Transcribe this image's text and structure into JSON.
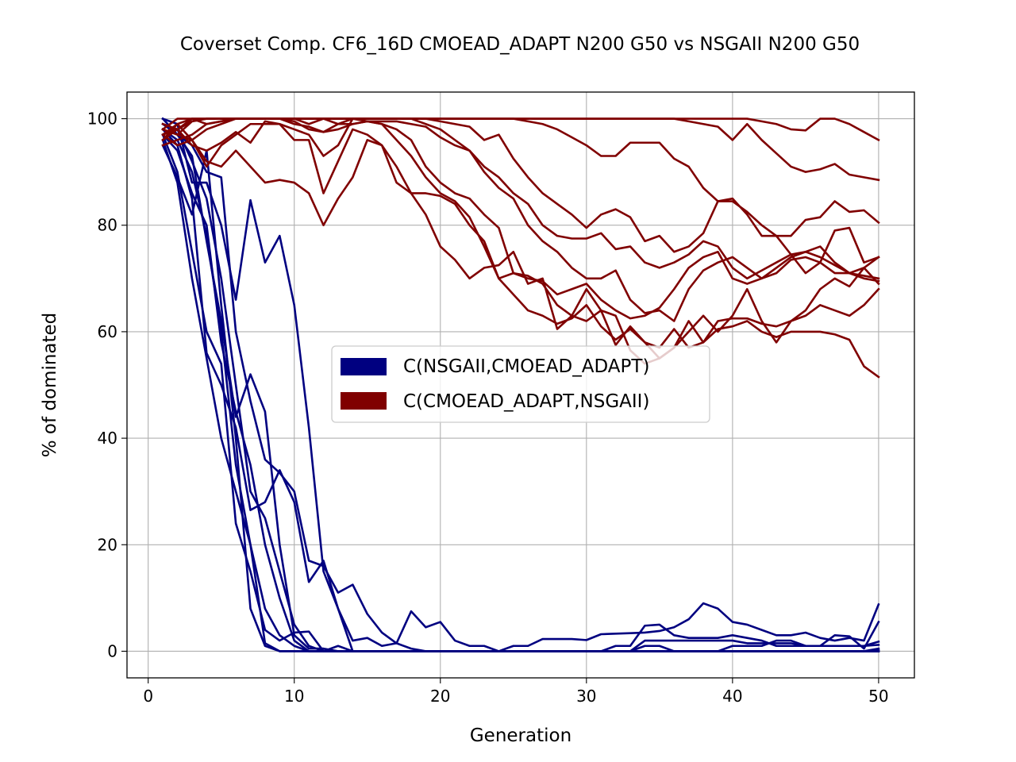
{
  "chart_data": {
    "type": "line",
    "title": "Coverset Comp. CF6_16D CMOEAD_ADAPT N200 G50 vs NSGAII N200 G50",
    "xlabel": "Generation",
    "ylabel": "% of dominated",
    "xlim": [
      -1.45,
      52.45
    ],
    "ylim": [
      -5,
      105
    ],
    "xticks": [
      0,
      10,
      20,
      30,
      40,
      50
    ],
    "yticks": [
      0,
      20,
      40,
      60,
      80,
      100
    ],
    "grid": true,
    "legend": {
      "position": "center",
      "entries": [
        {
          "label": "C(NSGAII,CMOEAD_ADAPT)",
          "color": "#000080"
        },
        {
          "label": "C(CMOEAD_ADAPT,NSGAII)",
          "color": "#800000"
        }
      ]
    },
    "x": [
      1,
      2,
      3,
      4,
      5,
      6,
      7,
      8,
      9,
      10,
      11,
      12,
      13,
      14,
      15,
      16,
      17,
      18,
      19,
      20,
      21,
      22,
      23,
      24,
      25,
      26,
      27,
      28,
      29,
      30,
      31,
      32,
      33,
      34,
      35,
      36,
      37,
      38,
      39,
      40,
      41,
      42,
      43,
      44,
      45,
      46,
      47,
      48,
      49,
      50
    ],
    "groups": [
      {
        "legend": "C(NSGAII,CMOEAD_ADAPT)",
        "color": "#000080",
        "series": [
          [
            100,
            99,
            88,
            88,
            80,
            66,
            84.7,
            73,
            78,
            65,
            42,
            15,
            8,
            0,
            0,
            0,
            0,
            0,
            0,
            0,
            0,
            0,
            0,
            0,
            0,
            0,
            0,
            0,
            0,
            0,
            0,
            0,
            0,
            0,
            0,
            0,
            0,
            0,
            0,
            0,
            0,
            0,
            0,
            0,
            0,
            0,
            0,
            0,
            0,
            0
          ],
          [
            99,
            97,
            95,
            90,
            89,
            60,
            47,
            36,
            33.5,
            30,
            17,
            16,
            11,
            12.5,
            7,
            3.5,
            1.5,
            0.5,
            0,
            0,
            0,
            0,
            0,
            0,
            0,
            0,
            0,
            0,
            0,
            0,
            0,
            0,
            0,
            0,
            0,
            0,
            0,
            0,
            0,
            0,
            0,
            0,
            0,
            0,
            0,
            0,
            0,
            0,
            0,
            0
          ],
          [
            98,
            95,
            85,
            56,
            50,
            42,
            26.5,
            28,
            34,
            28,
            13,
            17,
            8,
            2,
            2.5,
            1,
            1.5,
            7.5,
            4.5,
            5.5,
            2,
            1,
            1,
            0,
            1,
            1,
            2.3,
            2.3,
            2.3,
            2.1,
            3.2,
            3.3,
            3.4,
            3.5,
            3.8,
            4.5,
            6,
            9,
            8,
            5.5,
            5,
            4,
            3,
            3,
            3.5,
            2.5,
            2,
            2.5,
            2,
            8.8
          ],
          [
            97,
            90,
            75,
            60,
            54,
            24,
            15,
            4,
            2,
            3.5,
            3.7,
            0,
            1,
            0,
            0,
            0,
            0,
            0,
            0,
            0,
            0,
            0,
            0,
            0,
            0,
            0,
            0,
            0,
            0,
            0,
            0,
            0,
            0,
            0,
            0,
            0,
            0,
            0,
            0,
            0,
            0,
            0,
            0,
            0,
            0,
            0,
            0,
            0,
            0,
            0
          ],
          [
            96,
            88,
            70,
            55,
            40,
            30,
            20,
            1.5,
            0,
            0,
            0,
            0,
            0,
            0,
            0,
            0,
            0,
            0,
            0,
            0,
            0,
            0,
            0,
            0,
            0,
            0,
            0,
            0,
            0,
            0,
            0,
            0,
            0,
            0,
            0,
            0,
            0,
            0,
            0,
            0,
            0,
            0,
            0,
            0,
            0,
            0,
            0,
            0,
            0,
            0.5
          ],
          [
            95,
            89,
            82,
            94,
            65,
            40,
            8,
            1,
            0,
            0,
            0,
            0,
            0,
            0,
            0,
            0,
            0,
            0,
            0,
            0,
            0,
            0,
            0,
            0,
            0,
            0,
            0,
            0,
            0,
            0,
            0,
            0,
            0,
            0,
            0,
            0,
            0,
            0,
            0,
            0,
            0,
            0,
            0,
            0,
            0,
            0,
            0,
            0,
            0,
            0.3
          ],
          [
            98,
            96,
            90,
            78,
            60,
            35,
            20,
            8,
            3,
            1,
            0,
            0,
            0,
            0,
            0,
            0,
            0,
            0,
            0,
            0,
            0,
            0,
            0,
            0,
            0,
            0,
            0,
            0,
            0,
            0,
            0,
            1,
            1,
            4.8,
            5,
            3,
            2.5,
            2.5,
            2.5,
            3,
            2.5,
            2,
            1,
            1,
            1,
            1,
            1,
            1,
            1,
            1.2
          ],
          [
            99,
            98,
            92,
            85,
            70,
            50,
            30,
            25,
            15,
            5,
            1,
            0,
            0,
            0,
            0,
            0,
            0,
            0,
            0,
            0,
            0,
            0,
            0,
            0,
            0,
            0,
            0,
            0,
            0,
            0,
            0,
            0,
            0,
            2,
            2,
            2,
            2,
            2,
            2,
            2,
            1.5,
            1.5,
            1.5,
            1.5,
            1,
            1,
            3,
            2.8,
            0.5,
            5.5
          ],
          [
            97,
            94,
            86,
            80,
            58,
            45,
            35,
            20,
            10,
            2,
            0,
            0,
            0,
            0,
            0,
            0,
            0,
            0,
            0,
            0,
            0,
            0,
            0,
            0,
            0,
            0,
            0,
            0,
            0,
            0,
            0,
            0,
            0,
            1,
            1,
            0,
            0,
            0,
            0,
            1,
            1,
            1,
            2,
            2,
            1,
            1,
            1,
            1,
            1,
            1.8
          ],
          [
            100,
            97,
            93,
            77,
            62,
            44,
            52,
            45,
            20,
            3,
            0.5,
            0.5,
            0,
            0,
            0,
            0,
            0,
            0,
            0,
            0,
            0,
            0,
            0,
            0,
            0,
            0,
            0,
            0,
            0,
            0,
            0,
            0,
            0,
            0,
            0,
            0,
            0,
            0,
            0,
            0,
            0,
            0,
            0,
            0,
            0,
            0,
            0,
            0,
            0,
            0
          ]
        ]
      },
      {
        "legend": "C(CMOEAD_ADAPT,NSGAII)",
        "color": "#800000",
        "series": [
          [
            98,
            100,
            100,
            100,
            100,
            100,
            100,
            100,
            100,
            100,
            100,
            100,
            100,
            100,
            100,
            100,
            100,
            100,
            100,
            100,
            100,
            100,
            100,
            100,
            100,
            100,
            100,
            100,
            100,
            100,
            100,
            100,
            100,
            100,
            100,
            100,
            100,
            100,
            100,
            100,
            100,
            99.5,
            99,
            98,
            97.8,
            100,
            100,
            99,
            97.5,
            96
          ],
          [
            97,
            98,
            100,
            99,
            99.5,
            100,
            100,
            100,
            100,
            100,
            100,
            100,
            100,
            100,
            100,
            100,
            100,
            100,
            100,
            100,
            100,
            100,
            100,
            100,
            100,
            100,
            100,
            100,
            100,
            100,
            100,
            100,
            100,
            100,
            100,
            100,
            99.5,
            99,
            98.5,
            96,
            99,
            96,
            93.5,
            91,
            90,
            90.5,
            91.5,
            89.5,
            89,
            88.5
          ],
          [
            96,
            99,
            100,
            100,
            100,
            100,
            100,
            100,
            100,
            100,
            100,
            100,
            100,
            100,
            100,
            100,
            100,
            100,
            100,
            100,
            100,
            100,
            100,
            100,
            100,
            99.5,
            99,
            98,
            96.5,
            95,
            93,
            93,
            95.5,
            95.5,
            95.5,
            92.5,
            91,
            87,
            84.5,
            85,
            82,
            78,
            78,
            78,
            81,
            81.5,
            84.5,
            82.5,
            82.8,
            80.5
          ],
          [
            99,
            98,
            99.5,
            100,
            100,
            100,
            100,
            100,
            100,
            100,
            100,
            100,
            100,
            100,
            100,
            100,
            100,
            100,
            100,
            99.5,
            99,
            98.5,
            96,
            97,
            92.5,
            89,
            86,
            84,
            82,
            79.5,
            82,
            83,
            81.5,
            77,
            78,
            75,
            76,
            78.5,
            84.5,
            84.5,
            82.5,
            80,
            78,
            74.5,
            71,
            73,
            79,
            79.5,
            73,
            74
          ],
          [
            98,
            97,
            96,
            98,
            99,
            100,
            100,
            100,
            100,
            100,
            99,
            100,
            99,
            99,
            99.5,
            99.5,
            99.5,
            99,
            98.5,
            96.5,
            95,
            94,
            91,
            89,
            86,
            84,
            80,
            78,
            77.5,
            77.5,
            78.5,
            75.5,
            76,
            73,
            72,
            73,
            74.5,
            77,
            76,
            72,
            70,
            71.5,
            73,
            74.5,
            75,
            76,
            73,
            71,
            70.5,
            70
          ],
          [
            95,
            96,
            97,
            99,
            99.5,
            100,
            100,
            100,
            100,
            99.5,
            98,
            97.5,
            98,
            99,
            99.5,
            99,
            98,
            96,
            91,
            88,
            86,
            85,
            82,
            79.5,
            71,
            70,
            69.5,
            67,
            68,
            69,
            66,
            64,
            62.5,
            63,
            64.5,
            68,
            72,
            74,
            75,
            70,
            69,
            70,
            72,
            74,
            75,
            74,
            72.5,
            71,
            70,
            69.5
          ],
          [
            98,
            97,
            99.5,
            100,
            100,
            100,
            100,
            100,
            100,
            99,
            98.5,
            97.5,
            99,
            100,
            100,
            100,
            100,
            100,
            99,
            98,
            96,
            94,
            90,
            87,
            85,
            80,
            77,
            75,
            72,
            70,
            70,
            71.5,
            66,
            63.5,
            64,
            62,
            68,
            71.5,
            73,
            74,
            72,
            70,
            71,
            73.5,
            74,
            73,
            71,
            71,
            72,
            69
          ],
          [
            97,
            95,
            96,
            91,
            95,
            97,
            99,
            99,
            99,
            98,
            97,
            93,
            95,
            100,
            99.5,
            99,
            96,
            93,
            89,
            86,
            84.5,
            81.5,
            76,
            70,
            71,
            70.5,
            69,
            65,
            63,
            68,
            64,
            63,
            56.5,
            54,
            55,
            57,
            62,
            58,
            62,
            62.5,
            62.5,
            61.5,
            61,
            62,
            63,
            65,
            64,
            63,
            65,
            68
          ],
          [
            96,
            98,
            95,
            94,
            95.5,
            97.5,
            95.5,
            99.5,
            99,
            96,
            96,
            86,
            92,
            98,
            97,
            95,
            91,
            86,
            86,
            85.5,
            84,
            80,
            77,
            70,
            67,
            64,
            63,
            61.5,
            62.5,
            65,
            61,
            58.5,
            60.5,
            58,
            57,
            60.5,
            57,
            58,
            60.5,
            61,
            62,
            60,
            59,
            60,
            60,
            60,
            59.5,
            58.5,
            53.5,
            51.5
          ],
          [
            97,
            99,
            96,
            92,
            91,
            94,
            91,
            88,
            88.5,
            88,
            86,
            80,
            85,
            89,
            96,
            95,
            88,
            86,
            82,
            76,
            73.5,
            70,
            72,
            72.5,
            75,
            69,
            70,
            60.5,
            63,
            62,
            64,
            57.5,
            61,
            58,
            55,
            57,
            60,
            63,
            60,
            63,
            68,
            62,
            58,
            62,
            64,
            68,
            70,
            68.5,
            72,
            74
          ]
        ]
      }
    ]
  }
}
